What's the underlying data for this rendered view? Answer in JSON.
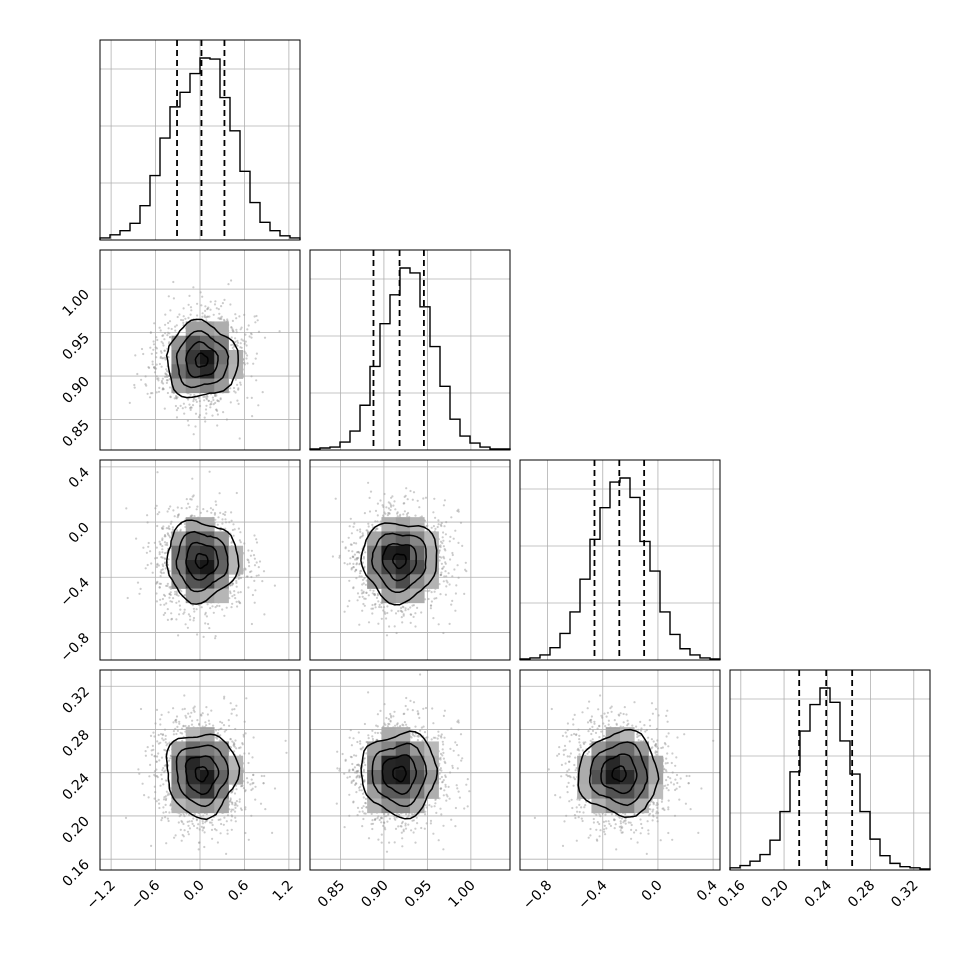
{
  "chart_data": {
    "type": "corner",
    "title": "",
    "n_params": 4,
    "params": [
      {
        "label": "",
        "range": [
          -1.35,
          1.35
        ],
        "ticks": [
          -1.2,
          -0.6,
          0.0,
          0.6,
          1.2
        ],
        "tick_labels": [
          "−1.2",
          "−0.6",
          "0.0",
          "0.6",
          "1.2"
        ],
        "mean": 0.02,
        "sd": 0.3,
        "quantiles": [
          -0.31,
          0.02,
          0.33
        ]
      },
      {
        "label": "",
        "range": [
          0.815,
          1.045
        ],
        "ticks": [
          0.85,
          0.9,
          0.95,
          1.0
        ],
        "tick_labels": [
          "0.85",
          "0.90",
          "0.95",
          "1.00"
        ],
        "mean": 0.918,
        "sd": 0.027,
        "quantiles": [
          0.888,
          0.918,
          0.946
        ]
      },
      {
        "label": "",
        "range": [
          -1.0,
          0.45
        ],
        "ticks": [
          -0.8,
          -0.4,
          0.0,
          0.4
        ],
        "tick_labels": [
          "−0.8",
          "−0.4",
          "0.0",
          "0.4"
        ],
        "mean": -0.28,
        "sd": 0.18,
        "quantiles": [
          -0.46,
          -0.28,
          -0.1
        ]
      },
      {
        "label": "",
        "range": [
          0.15,
          0.335
        ],
        "ticks": [
          0.16,
          0.2,
          0.24,
          0.28,
          0.32
        ],
        "tick_labels": [
          "0.16",
          "0.20",
          "0.24",
          "0.28",
          "0.32"
        ],
        "mean": 0.239,
        "sd": 0.024,
        "quantiles": [
          0.214,
          0.239,
          0.263
        ]
      }
    ],
    "histograms": [
      {
        "counts": [
          2,
          5,
          9,
          16,
          33,
          62,
          98,
          128,
          142,
          160,
          175,
          174,
          137,
          105,
          66,
          36,
          17,
          9,
          4,
          2
        ]
      },
      {
        "counts": [
          1,
          2,
          3,
          8,
          19,
          45,
          84,
          127,
          156,
          183,
          178,
          144,
          104,
          64,
          31,
          14,
          7,
          3,
          1,
          1
        ]
      },
      {
        "counts": [
          1,
          2,
          5,
          12,
          26,
          47,
          79,
          118,
          149,
          174,
          178,
          159,
          116,
          87,
          47,
          25,
          11,
          5,
          2,
          1
        ]
      },
      {
        "counts": [
          2,
          4,
          8,
          14,
          27,
          53,
          89,
          126,
          150,
          165,
          152,
          117,
          87,
          53,
          28,
          13,
          6,
          3,
          2,
          1
        ]
      }
    ],
    "grid": true,
    "contour_levels": 4,
    "scatter_points_per_panel": 1400
  }
}
